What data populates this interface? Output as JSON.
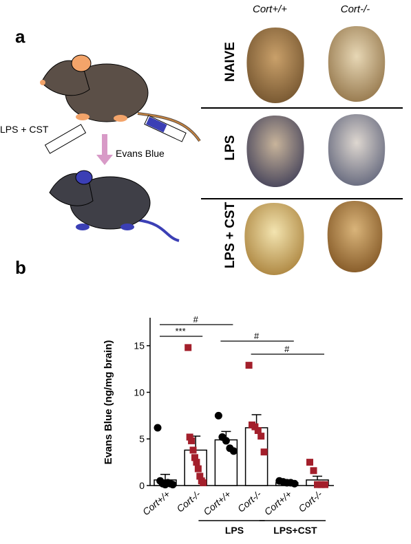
{
  "panel_a": {
    "label": "a",
    "columns": [
      "Cort+/+",
      "Cort-/-"
    ],
    "rows": [
      "NAIVE",
      "LPS",
      "LPS + CST"
    ],
    "injection_label": "LPS + CST",
    "arrow_label": "Evans Blue"
  },
  "panel_b": {
    "label": "b"
  },
  "chart_data": {
    "type": "bar",
    "ylabel": "Evans Blue (ng/mg brain)",
    "categories": [
      "Cort+/+",
      "Cort-/-",
      "Cort+/+",
      "Cort-/-",
      "Cort+/+",
      "Cort-/-"
    ],
    "values": [
      0.6,
      3.8,
      4.9,
      6.2,
      0.3,
      0.6
    ],
    "errors": [
      0.6,
      1.5,
      0.9,
      1.4,
      0.1,
      0.4
    ],
    "points": [
      [
        6.2,
        0.5,
        0.2,
        0.1,
        0.3,
        0.2,
        0.1
      ],
      [
        14.8,
        5.2,
        4.8,
        3.8,
        3.0,
        2.5,
        1.8,
        1.0,
        0.5,
        0.3
      ],
      [
        7.5,
        5.2,
        4.8,
        4.0,
        3.7
      ],
      [
        12.9,
        6.5,
        6.3,
        5.9,
        5.3,
        3.6
      ],
      [
        0.5,
        0.4,
        0.3,
        0.3,
        0.2
      ],
      [
        2.5,
        1.6,
        0.1,
        0.1,
        0.1
      ]
    ],
    "point_colors": [
      "#000000",
      "#a31f2b",
      "#000000",
      "#a31f2b",
      "#000000",
      "#a31f2b"
    ],
    "markers": [
      "circle",
      "square",
      "circle",
      "square",
      "circle",
      "square"
    ],
    "color": "#ffffff",
    "groups": [
      "LPS",
      "LPS+CST"
    ],
    "annotations": [
      "#",
      "***",
      "#",
      "#"
    ],
    "ylim": [
      0,
      18
    ],
    "yticks": [
      0,
      5,
      10,
      15
    ]
  }
}
